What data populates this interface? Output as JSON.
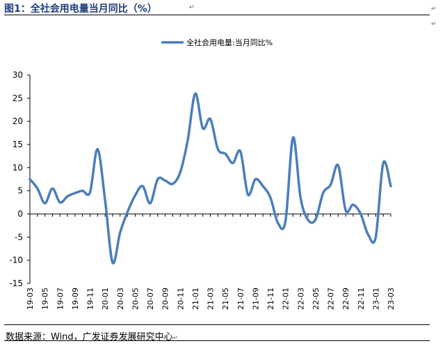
{
  "figure": {
    "title": "图1：全社会用电量当月同比（%）",
    "source": "数据来源：Wind，广发证券发展研究中心",
    "para_mark": "↵"
  },
  "colors": {
    "line": "#4a7ebb",
    "title": "#1f3d7a",
    "axis": "#000000"
  },
  "chart_data": {
    "type": "line",
    "title": "",
    "xlabel": "",
    "ylabel": "",
    "ylim": [
      -15,
      30
    ],
    "yticks": [
      -15,
      -10,
      -5,
      0,
      5,
      10,
      15,
      20,
      25,
      30
    ],
    "legend": "top-center",
    "grid": false,
    "x": [
      "19-03",
      "19-04",
      "19-05",
      "19-06",
      "19-07",
      "19-08",
      "19-09",
      "19-10",
      "19-11",
      "19-12",
      "20-01",
      "20-02",
      "20-03",
      "20-04",
      "20-05",
      "20-06",
      "20-07",
      "20-08",
      "20-09",
      "20-10",
      "20-11",
      "20-12",
      "21-01",
      "21-02",
      "21-03",
      "21-04",
      "21-05",
      "21-06",
      "21-07",
      "21-08",
      "21-09",
      "21-10",
      "21-11",
      "21-12",
      "22-01",
      "22-02",
      "22-03",
      "22-04",
      "22-05",
      "22-06",
      "22-07",
      "22-08",
      "22-09",
      "22-10",
      "22-11",
      "22-12",
      "23-01",
      "23-02",
      "23-03"
    ],
    "x_tick_labels": [
      "19-03",
      "19-05",
      "19-07",
      "19-09",
      "19-11",
      "20-01",
      "20-03",
      "20-05",
      "20-07",
      "20-09",
      "20-11",
      "21-01",
      "21-03",
      "21-05",
      "21-07",
      "21-09",
      "21-11",
      "22-01",
      "22-03",
      "22-05",
      "22-07",
      "22-09",
      "22-11",
      "23-01",
      "23-03"
    ],
    "series": [
      {
        "name": "全社会用电量:当月同比%",
        "values": [
          7.5,
          5.5,
          2.3,
          5.5,
          2.5,
          3.8,
          4.5,
          5.0,
          4.7,
          14.0,
          3.0,
          -10.5,
          -4.0,
          0.5,
          4.0,
          6.0,
          2.3,
          7.5,
          7.2,
          6.5,
          9.0,
          16.0,
          26.0,
          18.5,
          20.5,
          14.0,
          13.0,
          11.0,
          13.5,
          4.2,
          7.5,
          6.0,
          3.5,
          -2.0,
          -1.5,
          16.5,
          3.5,
          -1.3,
          -1.2,
          4.5,
          6.3,
          10.5,
          0.8,
          2.0,
          0.0,
          -4.5,
          -5.0,
          11.0,
          6.0
        ]
      }
    ]
  }
}
